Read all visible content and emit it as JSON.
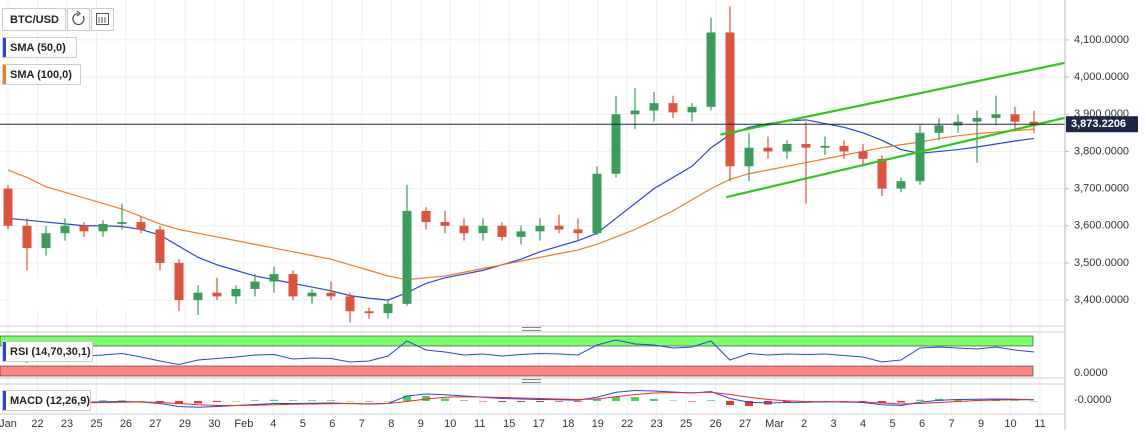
{
  "chart_data": {
    "type": "candlestick",
    "title": "BTC/USD",
    "x_axis_labels": [
      "Jan",
      "22",
      "23",
      "25",
      "26",
      "27",
      "29",
      "30",
      "Feb",
      "4",
      "5",
      "6",
      "7",
      "8",
      "9",
      "10",
      "11",
      "15",
      "17",
      "18",
      "19",
      "22",
      "23",
      "25",
      "26",
      "27",
      "Mar",
      "2",
      "3",
      "4",
      "5",
      "6",
      "7",
      "9",
      "10",
      "11"
    ],
    "open": [
      3700,
      3600,
      3540,
      3580,
      3600,
      3585,
      3605,
      3610,
      3590,
      3500,
      3400,
      3420,
      3410,
      3430,
      3450,
      3470,
      3410,
      3420,
      3410,
      3370,
      3365,
      3390,
      3640,
      3610,
      3600,
      3580,
      3600,
      3570,
      3585,
      3600,
      3590,
      3580,
      3740,
      3900,
      3910,
      3930,
      3905,
      3920,
      4120,
      3760,
      3810,
      3800,
      3820,
      3810,
      3815,
      3800,
      3780,
      3700,
      3720,
      3850,
      3870,
      3880,
      3890,
      3900,
      3880
    ],
    "high": [
      3710,
      3620,
      3600,
      3620,
      3610,
      3615,
      3660,
      3625,
      3600,
      3510,
      3440,
      3460,
      3440,
      3470,
      3490,
      3480,
      3430,
      3450,
      3420,
      3380,
      3400,
      3710,
      3650,
      3640,
      3620,
      3620,
      3610,
      3600,
      3620,
      3630,
      3620,
      3760,
      3950,
      3970,
      3960,
      3950,
      3930,
      4160,
      4190,
      3850,
      3840,
      3830,
      3880,
      3840,
      3830,
      3820,
      3790,
      3730,
      3870,
      3890,
      3900,
      3910,
      3950,
      3920,
      3910
    ],
    "low": [
      3590,
      3480,
      3520,
      3560,
      3570,
      3570,
      3590,
      3580,
      3480,
      3370,
      3360,
      3400,
      3390,
      3410,
      3420,
      3400,
      3390,
      3400,
      3340,
      3350,
      3350,
      3385,
      3590,
      3580,
      3560,
      3560,
      3560,
      3550,
      3560,
      3580,
      3560,
      3575,
      3730,
      3860,
      3880,
      3890,
      3880,
      3910,
      3720,
      3720,
      3780,
      3780,
      3660,
      3790,
      3780,
      3760,
      3680,
      3690,
      3710,
      3830,
      3850,
      3770,
      3870,
      3860,
      3850
    ],
    "close": [
      3600,
      3540,
      3580,
      3600,
      3585,
      3605,
      3610,
      3590,
      3500,
      3400,
      3420,
      3410,
      3430,
      3450,
      3470,
      3410,
      3420,
      3410,
      3370,
      3365,
      3390,
      3640,
      3610,
      3600,
      3580,
      3600,
      3570,
      3585,
      3600,
      3590,
      3580,
      3740,
      3900,
      3910,
      3930,
      3905,
      3920,
      4120,
      3760,
      3810,
      3800,
      3820,
      3810,
      3815,
      3800,
      3780,
      3700,
      3720,
      3850,
      3870,
      3880,
      3890,
      3900,
      3880,
      3873
    ],
    "up_color": "#3d9b5c",
    "down_color": "#d9553d",
    "series": [
      {
        "name": "SMA (50,0)",
        "color": "#2d45d6",
        "values": [
          3620,
          3615,
          3610,
          3605,
          3600,
          3600,
          3598,
          3590,
          3575,
          3545,
          3515,
          3495,
          3480,
          3465,
          3455,
          3445,
          3435,
          3425,
          3412,
          3405,
          3400,
          3420,
          3445,
          3460,
          3470,
          3480,
          3495,
          3510,
          3530,
          3545,
          3560,
          3580,
          3620,
          3660,
          3700,
          3730,
          3760,
          3810,
          3845,
          3865,
          3875,
          3882,
          3885,
          3875,
          3865,
          3850,
          3830,
          3805,
          3795,
          3800,
          3805,
          3812,
          3820,
          3828,
          3835
        ]
      },
      {
        "name": "SMA (100,0)",
        "color": "#ee7a2a",
        "values": [
          3750,
          3730,
          3705,
          3690,
          3675,
          3660,
          3645,
          3625,
          3605,
          3590,
          3580,
          3570,
          3560,
          3550,
          3540,
          3530,
          3520,
          3510,
          3495,
          3480,
          3465,
          3455,
          3460,
          3465,
          3475,
          3485,
          3495,
          3505,
          3515,
          3525,
          3535,
          3550,
          3570,
          3590,
          3615,
          3640,
          3670,
          3700,
          3725,
          3740,
          3750,
          3760,
          3770,
          3780,
          3790,
          3800,
          3810,
          3818,
          3825,
          3835,
          3842,
          3848,
          3852,
          3856,
          3860
        ]
      }
    ],
    "trendlines": [
      {
        "color": "#33c41d",
        "x": [
          37.5,
          55.6
        ],
        "values": [
          3845,
          4038
        ]
      },
      {
        "color": "#33c41d",
        "x": [
          37.8,
          55.6
        ],
        "values": [
          3677,
          3890
        ]
      }
    ],
    "last_price": {
      "value": 3873.2206,
      "label": "3,873.2206"
    },
    "ylim": [
      3333,
      4194
    ],
    "yticks": [
      {
        "value": 3400,
        "label": "3,400.0000"
      },
      {
        "value": 3500,
        "label": "3,500.0000"
      },
      {
        "value": 3600,
        "label": "3,600.0000"
      },
      {
        "value": 3700,
        "label": "3,700.0000"
      },
      {
        "value": 3800,
        "label": "3,800.0000"
      },
      {
        "value": 3900,
        "label": "3,900.0000"
      },
      {
        "value": 4000,
        "label": "4,000.0000"
      },
      {
        "value": 4100,
        "label": "4,100.0000"
      }
    ],
    "grid": true,
    "rsi": {
      "name": "RSI (14,70,30,1)",
      "color": "#2d45d6",
      "ylim": [
        10,
        90
      ],
      "overbought": [
        70,
        90
      ],
      "oversold": [
        10,
        30
      ],
      "axis_label": "0.0000",
      "values": [
        45,
        38,
        48,
        52,
        50,
        52,
        55,
        48,
        40,
        33,
        42,
        45,
        48,
        52,
        53,
        44,
        46,
        45,
        38,
        40,
        50,
        80,
        62,
        58,
        52,
        54,
        50,
        53,
        55,
        54,
        52,
        72,
        82,
        74,
        72,
        66,
        68,
        80,
        42,
        55,
        52,
        54,
        53,
        54,
        51,
        48,
        38,
        42,
        66,
        68,
        66,
        64,
        68,
        62,
        58
      ]
    },
    "macd": {
      "name": "MACD (12,26,9)",
      "ylim": [
        -60,
        60
      ],
      "axis_label": "-0.0000",
      "macd_color": "#2d45d6",
      "signal_color": "#e0302a",
      "macd": [
        -5,
        -15,
        -12,
        -8,
        -5,
        -3,
        -2,
        -4,
        -10,
        -22,
        -25,
        -22,
        -18,
        -14,
        -10,
        -10,
        -9,
        -8,
        -10,
        -12,
        -10,
        20,
        28,
        25,
        20,
        15,
        10,
        8,
        6,
        5,
        3,
        15,
        35,
        42,
        40,
        36,
        32,
        38,
        10,
        -5,
        -8,
        -6,
        -5,
        -3,
        -4,
        -6,
        -15,
        -18,
        -5,
        3,
        6,
        7,
        8,
        7,
        5
      ],
      "signal": [
        -2,
        -6,
        -8,
        -8,
        -7,
        -6,
        -5,
        -4,
        -6,
        -10,
        -15,
        -18,
        -18,
        -17,
        -15,
        -13,
        -12,
        -11,
        -10,
        -11,
        -10,
        -2,
        8,
        15,
        17,
        16,
        14,
        12,
        10,
        8,
        6,
        8,
        17,
        26,
        32,
        34,
        33,
        35,
        26,
        15,
        6,
        1,
        -2,
        -3,
        -3,
        -4,
        -8,
        -12,
        -10,
        -6,
        -2,
        2,
        4,
        5,
        5
      ],
      "histogram": [
        -3,
        -9,
        -4,
        0,
        2,
        3,
        3,
        0,
        -4,
        -12,
        -10,
        -4,
        0,
        3,
        5,
        3,
        3,
        3,
        0,
        -1,
        0,
        22,
        20,
        10,
        3,
        -1,
        -4,
        -4,
        -4,
        -3,
        -3,
        7,
        18,
        16,
        8,
        2,
        -1,
        3,
        -16,
        -20,
        -14,
        -7,
        -3,
        0,
        -1,
        -2,
        -7,
        -6,
        5,
        9,
        8,
        5,
        4,
        2,
        0
      ]
    }
  }
}
